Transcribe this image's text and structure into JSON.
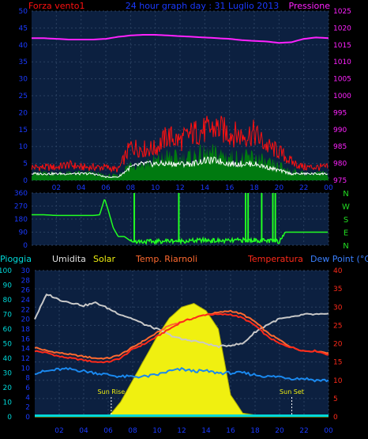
{
  "header": {
    "wind_label": "Forza vento1",
    "date_title": "24 hour graph day : 31 Luglio 2013",
    "pressure_label": "Pressione"
  },
  "colors": {
    "wind": "#ff1010",
    "wind_avg": "#ffffff",
    "wind_fill": "#007a10",
    "pressure": "#ff22ff",
    "direction": "#22ff22",
    "humidity": "#c8c8c8",
    "solar": "#f0f010",
    "temperature": "#ff2a1a",
    "wind_chill": "#ff6a30",
    "dew_point": "#1a88ee",
    "rain": "#00d8d8",
    "panel_bg": "#0c2040",
    "axis_text": "#1a3aff",
    "header_text": "#1a3aff",
    "label_blue": "#3a80ff",
    "compass": "#22dd22"
  },
  "chart_data": [
    {
      "type": "line",
      "name": "wind_pressure",
      "x_ticks": [
        "02",
        "04",
        "06",
        "08",
        "10",
        "12",
        "14",
        "16",
        "18",
        "20",
        "22",
        "00"
      ],
      "wind_yticks": [
        "0",
        "5",
        "10",
        "15",
        "20",
        "25",
        "30",
        "35",
        "40",
        "45",
        "50"
      ],
      "wind_ylim": [
        0,
        50
      ],
      "pressure_yticks": [
        "975",
        "980",
        "985",
        "990",
        "995",
        "1000",
        "1005",
        "1010",
        "1015",
        "1020",
        "1025"
      ],
      "pressure_ylim": [
        975,
        1025
      ],
      "x_hours": [
        0,
        1,
        2,
        3,
        4,
        5,
        6,
        7,
        8,
        9,
        10,
        11,
        12,
        13,
        14,
        15,
        16,
        17,
        18,
        19,
        20,
        21,
        22,
        23,
        24
      ],
      "wind_gust_max": [
        5,
        5,
        5,
        6,
        5,
        5,
        5,
        4,
        13,
        12,
        12,
        17,
        15,
        18,
        19,
        20,
        18,
        17,
        18,
        13,
        11,
        7,
        5,
        5,
        5
      ],
      "wind_speed": [
        3,
        3,
        3,
        3,
        3,
        3,
        2,
        2,
        7,
        7,
        8,
        10,
        9,
        10,
        11,
        11,
        10,
        9,
        10,
        7,
        6,
        4,
        3,
        3,
        3
      ],
      "wind_avg": [
        2,
        2,
        2,
        2,
        2,
        2,
        1,
        1,
        4,
        5,
        5,
        5,
        5,
        5,
        6,
        6,
        5,
        5,
        5,
        4,
        3,
        2,
        2,
        2,
        2
      ],
      "pressure": [
        1017,
        1017,
        1016.8,
        1016.6,
        1016.6,
        1016.6,
        1016.8,
        1017.4,
        1017.8,
        1018,
        1018,
        1017.8,
        1017.6,
        1017.4,
        1017.2,
        1017,
        1016.8,
        1016.4,
        1016.2,
        1016,
        1015.6,
        1015.8,
        1016.8,
        1017.2,
        1017
      ]
    },
    {
      "type": "line",
      "name": "wind_direction",
      "y_ticks": [
        "360",
        "270",
        "180",
        "90",
        "0"
      ],
      "ylim": [
        0,
        360
      ],
      "compass_labels": [
        "N",
        "W",
        "S",
        "E",
        "N"
      ],
      "x_hours": [
        0,
        1,
        2,
        3,
        4,
        5,
        5.5,
        5.9,
        6.2,
        6.6,
        7,
        7.5,
        8,
        9,
        10,
        11,
        12,
        13,
        14,
        15,
        16,
        17,
        18,
        19,
        20,
        20.5,
        21,
        22,
        23,
        24
      ],
      "direction": [
        210,
        210,
        205,
        205,
        205,
        205,
        210,
        320,
        240,
        120,
        60,
        60,
        30,
        25,
        25,
        30,
        30,
        30,
        35,
        30,
        30,
        35,
        35,
        30,
        25,
        90,
        90,
        90,
        90,
        90
      ]
    },
    {
      "type": "line",
      "name": "weather",
      "labels": [
        "Pioggia",
        "Umidita",
        "Solar",
        "Temp. Riarnoli",
        "Temperatura",
        "Dew Point (°C)"
      ],
      "rain_yticks": [
        "0",
        "10",
        "20",
        "30",
        "40",
        "50",
        "60",
        "70",
        "80",
        "90",
        "100"
      ],
      "humidity_yticks": [
        "0",
        "2",
        "4",
        "6",
        "8",
        "10",
        "12",
        "14",
        "16",
        "18",
        "20",
        "22",
        "24",
        "26",
        "28",
        "30"
      ],
      "temp_yticks": [
        "0",
        "5",
        "10",
        "15",
        "20",
        "25",
        "30",
        "35",
        "40"
      ],
      "temp_ylim": [
        0,
        40
      ],
      "hum_ylim": [
        0,
        100
      ],
      "annotations": [
        "Sun Rise",
        "Sun Set"
      ],
      "sunrise_hour": 6.25,
      "sunset_hour": 21.0,
      "x_hours": [
        0,
        1,
        2,
        3,
        4,
        5,
        6,
        7,
        8,
        9,
        10,
        11,
        12,
        13,
        14,
        15,
        16,
        17,
        18,
        19,
        20,
        21,
        22,
        23,
        24
      ],
      "humidity": [
        67,
        84,
        80,
        78,
        76,
        78,
        74,
        70,
        67,
        63,
        60,
        56,
        53,
        52,
        50,
        48,
        49,
        50,
        58,
        63,
        67,
        68,
        70,
        70,
        70
      ],
      "temperature": [
        18,
        17.5,
        16.5,
        16,
        15.5,
        15,
        15,
        16,
        18.5,
        20,
        22,
        24,
        26,
        27,
        28,
        28,
        28,
        27,
        25,
        22,
        20,
        19,
        18,
        18,
        17
      ],
      "apparent_temp": [
        19,
        18,
        17.5,
        17,
        16.5,
        16,
        16,
        17,
        19,
        21,
        23,
        25,
        26,
        27,
        28,
        28.5,
        29,
        28,
        26,
        23,
        21,
        19,
        18,
        18,
        17.5
      ],
      "dew_point": [
        12,
        12.5,
        13,
        13,
        12.5,
        12,
        11.5,
        11,
        11,
        11,
        11.5,
        12.5,
        13,
        12.5,
        12.5,
        12,
        12,
        12,
        11.5,
        11,
        11,
        10.5,
        10.5,
        10,
        10
      ],
      "solar": [
        0,
        0,
        0,
        0,
        0,
        0,
        0,
        4,
        10,
        16,
        22,
        27,
        30,
        31,
        29,
        24,
        6,
        1,
        0.5,
        0,
        0,
        0,
        0,
        0,
        0
      ],
      "rain": [
        0,
        0,
        0,
        0,
        0,
        0,
        0,
        0,
        0,
        0,
        0,
        0,
        0,
        0,
        0,
        0,
        0,
        0,
        0,
        0,
        0,
        0,
        0,
        0,
        0
      ]
    }
  ]
}
